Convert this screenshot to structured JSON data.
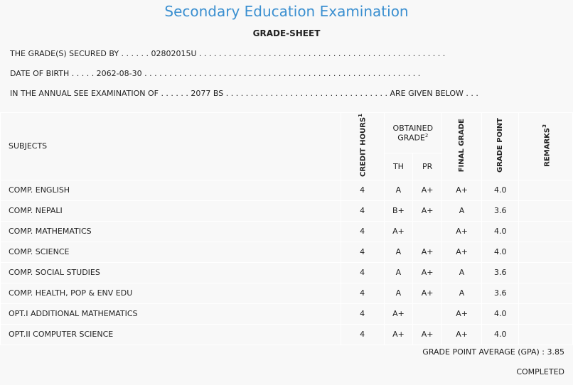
{
  "header": {
    "title": "Secondary Education Examination",
    "subtitle": "GRADE-SHEET"
  },
  "info": {
    "line1": "THE GRADE(S) SECURED BY . . . . . . 02802015U . . . . . . . . . . . . . . . . . . . . . . . . . . . . . . . . . . . . . . . . . . . . . . . . . .",
    "line2": "DATE OF BIRTH . . . . . 2062-08-30 . . . . . . . . . . . . . . . . . . . . . . . . . . . . . . . . . . . . . . . . . . . . . . . . . . . . . . . .",
    "line3": "IN THE ANNUAL SEE EXAMINATION OF . . . . . . 2077 BS . . . . . . . . . . . . . . . . . . . . . . . . . . . . . . . . . ARE GIVEN BELOW . . ."
  },
  "table": {
    "subjects_header": "SUBJECTS",
    "credit_header": "CREDIT HOURS",
    "credit_sup": "1",
    "obtained_header": "OBTAINED GRADE",
    "obtained_sup": "2",
    "th_header": "TH",
    "pr_header": "PR",
    "final_header": "FINAL GRADE",
    "gp_header": "GRADE POINT",
    "remarks_header": "REMARKS",
    "remarks_sup": "3",
    "rows": [
      {
        "subject": "COMP. ENGLISH",
        "credit": "4",
        "th": "A",
        "pr": "A+",
        "final": "A+",
        "gp": "4.0"
      },
      {
        "subject": "COMP. NEPALI",
        "credit": "4",
        "th": "B+",
        "pr": "A+",
        "final": "A",
        "gp": "3.6"
      },
      {
        "subject": "COMP. MATHEMATICS",
        "credit": "4",
        "th": "A+",
        "pr": "",
        "final": "A+",
        "gp": "4.0"
      },
      {
        "subject": "COMP. SCIENCE",
        "credit": "4",
        "th": "A",
        "pr": "A+",
        "final": "A+",
        "gp": "4.0"
      },
      {
        "subject": "COMP. SOCIAL STUDIES",
        "credit": "4",
        "th": "A",
        "pr": "A+",
        "final": "A",
        "gp": "3.6"
      },
      {
        "subject": "COMP. HEALTH, POP & ENV EDU",
        "credit": "4",
        "th": "A",
        "pr": "A+",
        "final": "A",
        "gp": "3.6"
      },
      {
        "subject": "OPT.I ADDITIONAL MATHEMATICS",
        "credit": "4",
        "th": "A+",
        "pr": "",
        "final": "A+",
        "gp": "4.0"
      },
      {
        "subject": "OPT.II COMPUTER SCIENCE",
        "credit": "4",
        "th": "A+",
        "pr": "A+",
        "final": "A+",
        "gp": "4.0"
      }
    ]
  },
  "footer": {
    "gpa": "GRADE POINT AVERAGE (GPA) : 3.85",
    "status": "COMPLETED"
  }
}
